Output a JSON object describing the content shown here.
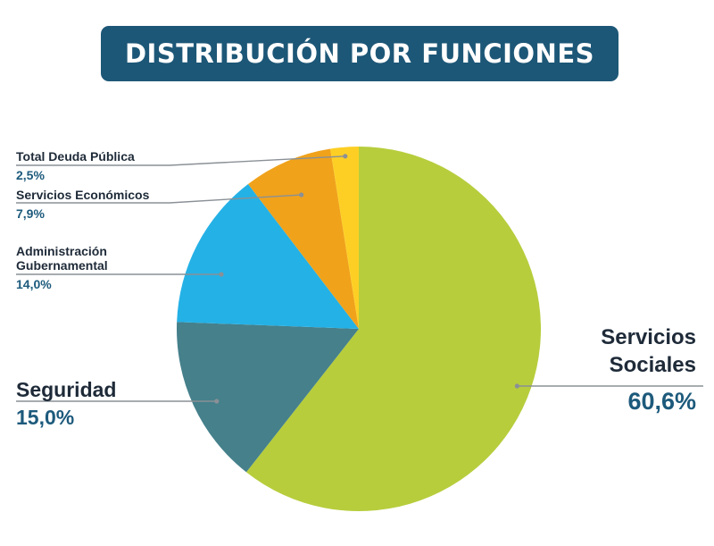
{
  "title": "DISTRIBUCIÓN POR FUNCIONES",
  "chart_data": {
    "type": "pie",
    "title": "DISTRIBUCIÓN POR FUNCIONES",
    "start": "12 o'clock",
    "direction": "clockwise",
    "slices": [
      {
        "name": "Servicios Sociales",
        "name_lines": [
          "Servicios",
          "Sociales"
        ],
        "value": 60.6,
        "label": "60,6%",
        "color": "#b7cd3c"
      },
      {
        "name": "Seguridad",
        "name_lines": [
          "Seguridad"
        ],
        "value": 15.0,
        "label": "15,0%",
        "color": "#45808b"
      },
      {
        "name": "Administración Gubernamental",
        "name_lines": [
          "Administración",
          "Gubernamental"
        ],
        "value": 14.0,
        "label": "14,0%",
        "color": "#24b1e6"
      },
      {
        "name": "Servicios Económicos",
        "name_lines": [
          "Servicios Económicos"
        ],
        "value": 7.9,
        "label": "7,9%",
        "color": "#f0a21b"
      },
      {
        "name": "Total Deuda Pública",
        "name_lines": [
          "Total Deuda Pública"
        ],
        "value": 2.5,
        "label": "2,5%",
        "color": "#fdcf25"
      }
    ]
  }
}
